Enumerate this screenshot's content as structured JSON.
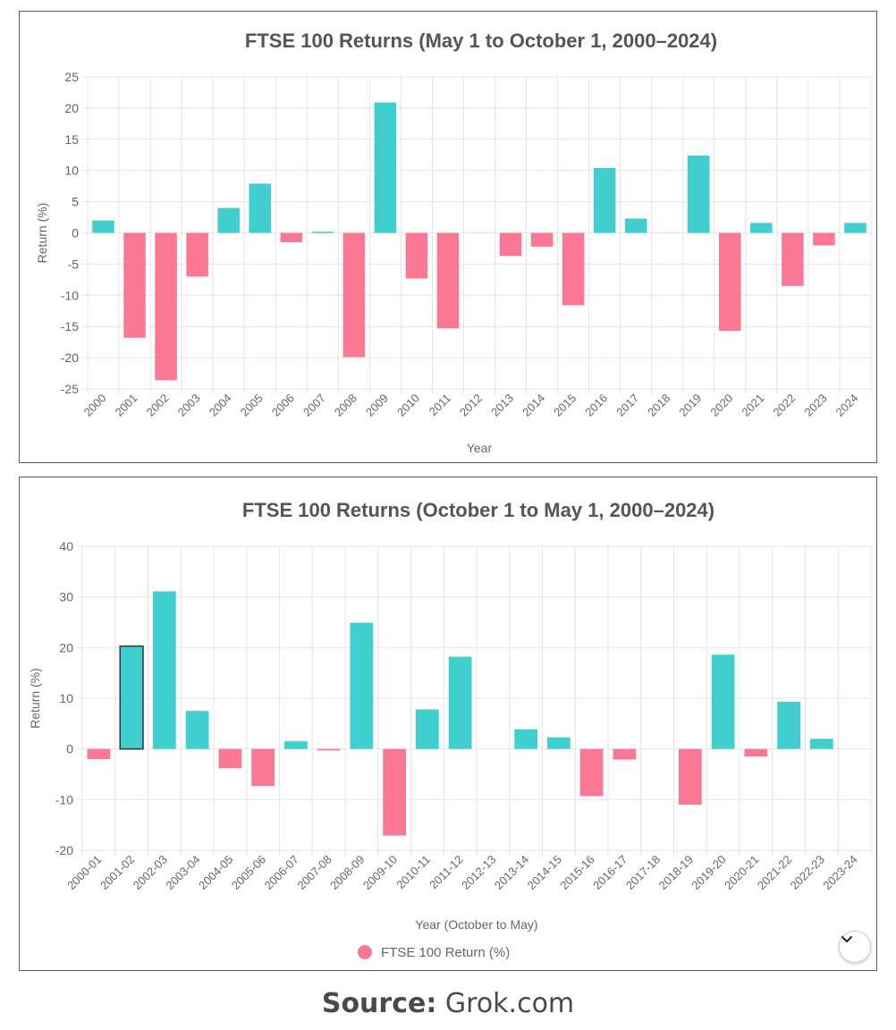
{
  "chart_data": [
    {
      "type": "bar",
      "title": "FTSE 100 Returns (May 1 to October 1, 2000–2024)",
      "xlabel": "Year",
      "ylabel": "Return (%)",
      "ylim": [
        -25,
        25
      ],
      "yticks": [
        25,
        20,
        15,
        10,
        5,
        0,
        -5,
        -10,
        -15,
        -20,
        -25
      ],
      "grid": true,
      "categories": [
        "2000",
        "2001",
        "2002",
        "2003",
        "2004",
        "2005",
        "2006",
        "2007",
        "2008",
        "2009",
        "2010",
        "2011",
        "2012",
        "2013",
        "2014",
        "2015",
        "2016",
        "2017",
        "2018",
        "2019",
        "2020",
        "2021",
        "2022",
        "2023",
        "2024"
      ],
      "values": [
        2.0,
        -16.8,
        -23.6,
        -7.0,
        4.0,
        7.9,
        -1.5,
        0.2,
        -19.9,
        20.9,
        -7.3,
        -15.3,
        0,
        -3.7,
        -2.2,
        -11.6,
        10.4,
        2.3,
        0,
        12.4,
        -15.7,
        1.6,
        -8.5,
        -2.0,
        1.6
      ]
    },
    {
      "type": "bar",
      "title": "FTSE 100 Returns (October 1 to May 1, 2000–2024)",
      "xlabel": "Year (October to May)",
      "ylabel": "Return (%)",
      "ylim": [
        -20,
        40
      ],
      "yticks": [
        40,
        30,
        20,
        10,
        0,
        -10,
        -20
      ],
      "grid": true,
      "legend": "FTSE 100 Return (%)",
      "legend_position": "bottom-center",
      "highlighted_category": "2001-02",
      "categories": [
        "2000-01",
        "2001-02",
        "2002-03",
        "2003-04",
        "2004-05",
        "2005-06",
        "2006-07",
        "2007-08",
        "2008-09",
        "2009-10",
        "2010-11",
        "2011-12",
        "2012-13",
        "2013-14",
        "2014-15",
        "2015-16",
        "2016-17",
        "2017-18",
        "2018-19",
        "2019-20",
        "2020-21",
        "2021-22",
        "2022-23",
        "2023-24"
      ],
      "values": [
        -2.0,
        20.3,
        31.1,
        7.5,
        -3.8,
        -7.3,
        1.5,
        -0.3,
        24.9,
        -17.1,
        7.8,
        18.2,
        0,
        3.9,
        2.3,
        -9.3,
        -2.1,
        0,
        -11.0,
        18.6,
        -1.5,
        9.3,
        2.0,
        0
      ]
    }
  ],
  "colors": {
    "positive": "#40cfcf",
    "negative": "#fb7895",
    "grid": "#e4e4e4",
    "axis_text": "#666666",
    "title_text": "#555555"
  },
  "source": {
    "label": "Source:",
    "value": "Grok.com"
  },
  "scroll_button_icon": "chevron-down-icon"
}
